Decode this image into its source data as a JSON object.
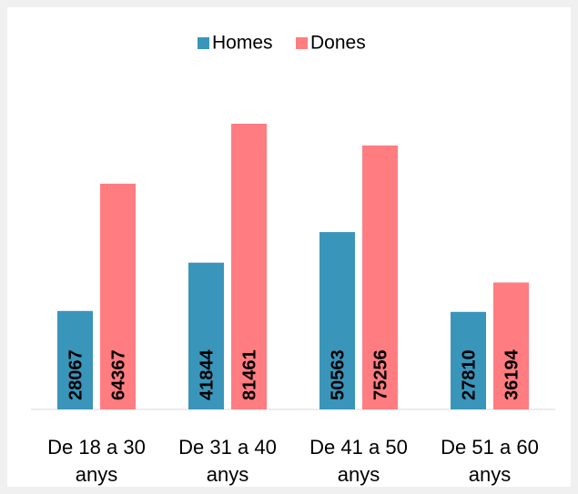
{
  "chart_data": {
    "type": "bar",
    "categories": [
      "De 18 a 30 anys",
      "De 31 a 40 anys",
      "De 41 a 50 anys",
      "De 51 a 60 anys"
    ],
    "series": [
      {
        "name": "Homes",
        "color": "#3a95bb",
        "values": [
          28067,
          41844,
          50563,
          27810
        ]
      },
      {
        "name": "Dones",
        "color": "#ff7c80",
        "values": [
          64367,
          81461,
          75256,
          36194
        ]
      }
    ],
    "legend": "top"
  }
}
